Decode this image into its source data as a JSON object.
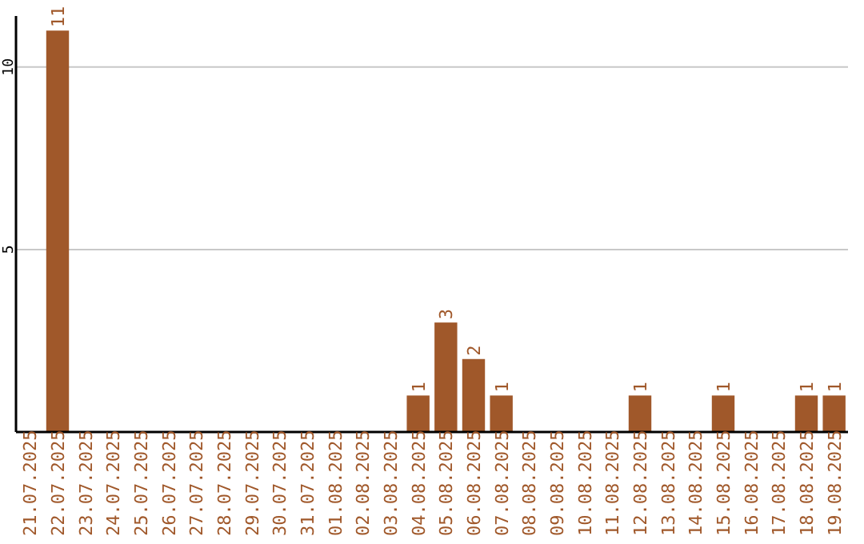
{
  "chart_data": {
    "type": "bar",
    "categories": [
      "21.07.2025",
      "22.07.2025",
      "23.07.2025",
      "24.07.2025",
      "25.07.2025",
      "26.07.2025",
      "27.07.2025",
      "28.07.2025",
      "29.07.2025",
      "30.07.2025",
      "31.07.2025",
      "01.08.2025",
      "02.08.2025",
      "03.08.2025",
      "04.08.2025",
      "05.08.2025",
      "06.08.2025",
      "07.08.2025",
      "08.08.2025",
      "09.08.2025",
      "10.08.2025",
      "11.08.2025",
      "12.08.2025",
      "13.08.2025",
      "14.08.2025",
      "15.08.2025",
      "16.08.2025",
      "17.08.2025",
      "18.08.2025",
      "19.08.2025"
    ],
    "values": [
      0,
      11,
      0,
      0,
      0,
      0,
      0,
      0,
      0,
      0,
      0,
      0,
      0,
      0,
      1,
      3,
      2,
      1,
      0,
      0,
      0,
      0,
      1,
      0,
      0,
      1,
      0,
      0,
      1,
      1
    ],
    "value_labels": [
      null,
      "11",
      null,
      null,
      null,
      null,
      null,
      null,
      null,
      null,
      null,
      null,
      null,
      null,
      "1",
      "3",
      "2",
      "1",
      null,
      null,
      null,
      null,
      "1",
      null,
      null,
      "1",
      null,
      null,
      "1",
      "1"
    ],
    "color": "#a0582a",
    "ylim": [
      0,
      11.4
    ],
    "yticks": [
      5,
      10
    ],
    "grid": "y"
  }
}
